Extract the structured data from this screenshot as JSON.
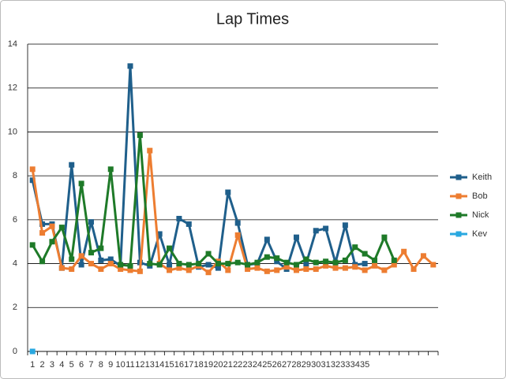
{
  "chart_data": {
    "type": "line",
    "title": "Lap Times",
    "categories": [
      "1",
      "2",
      "3",
      "4",
      "5",
      "6",
      "7",
      "8",
      "9",
      "10",
      "11",
      "12",
      "13",
      "14",
      "15",
      "16",
      "17",
      "18",
      "19",
      "20",
      "21",
      "22",
      "23",
      "24",
      "25",
      "26",
      "27",
      "28",
      "29",
      "30",
      "31",
      "32",
      "33",
      "34",
      "35",
      null,
      null,
      null,
      null,
      null,
      null,
      null
    ],
    "series": [
      {
        "name": "Keith",
        "color": "#1f5f8b",
        "values": [
          7.8,
          5.8,
          5.8,
          3.8,
          8.5,
          3.95,
          5.9,
          4.15,
          4.2,
          3.9,
          13.0,
          4.05,
          3.9,
          5.35,
          3.95,
          6.05,
          5.8,
          3.85,
          3.95,
          3.8,
          7.25,
          5.85,
          3.95,
          4.0,
          5.1,
          4.1,
          3.75,
          5.2,
          4.0,
          5.5,
          5.6,
          4.05,
          5.75,
          3.95,
          4.0,
          null,
          null,
          null,
          null,
          null,
          null,
          null
        ]
      },
      {
        "name": "Bob",
        "color": "#ed7d31",
        "values": [
          8.3,
          5.4,
          5.7,
          3.8,
          3.75,
          4.35,
          4.0,
          3.75,
          4.0,
          3.75,
          3.7,
          3.65,
          9.15,
          4.0,
          3.7,
          3.8,
          3.7,
          3.9,
          3.6,
          4.1,
          3.7,
          5.3,
          3.75,
          3.8,
          3.65,
          3.7,
          3.85,
          3.7,
          3.75,
          3.75,
          3.9,
          3.8,
          3.8,
          3.85,
          3.7,
          3.9,
          3.7,
          3.95,
          4.55,
          3.75,
          4.35,
          3.95
        ]
      },
      {
        "name": "Nick",
        "color": "#1e7a28",
        "values": [
          4.85,
          4.1,
          5.0,
          5.65,
          4.2,
          7.65,
          4.5,
          4.7,
          8.3,
          3.95,
          3.9,
          9.85,
          4.0,
          3.95,
          4.7,
          4.0,
          3.95,
          4.0,
          4.45,
          4.0,
          4.0,
          4.05,
          3.95,
          4.05,
          4.3,
          4.25,
          4.05,
          3.95,
          4.2,
          4.05,
          4.1,
          4.05,
          4.15,
          4.75,
          4.45,
          4.15,
          5.2,
          4.15,
          null,
          null,
          null,
          null
        ]
      },
      {
        "name": "Kev",
        "color": "#29a8e0",
        "values": [
          0,
          null,
          null,
          null,
          null,
          null,
          null,
          null,
          null,
          null,
          null,
          null,
          null,
          null,
          null,
          null,
          null,
          null,
          null,
          null,
          null,
          null,
          null,
          null,
          null,
          null,
          null,
          null,
          null,
          null,
          null,
          null,
          null,
          null,
          null,
          null,
          null,
          null,
          null,
          null,
          null,
          null
        ]
      }
    ],
    "ylim": [
      0,
      14
    ],
    "yticks": [
      0,
      2,
      4,
      6,
      8,
      10,
      12,
      14
    ],
    "grid": true,
    "legend": "right"
  }
}
